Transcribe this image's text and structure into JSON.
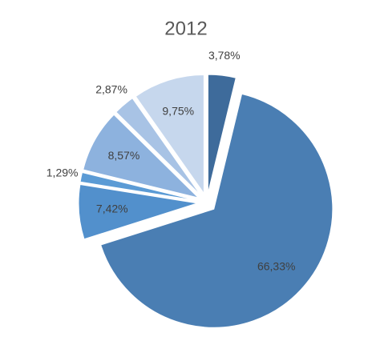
{
  "chart_data": {
    "type": "pie",
    "title": "2012",
    "values": [
      3.78,
      66.33,
      7.42,
      1.29,
      8.57,
      2.87,
      9.75
    ],
    "value_labels": [
      "3,78%",
      "66,33%",
      "7,42%",
      "1,29%",
      "8,57%",
      "2,87%",
      "9,75%"
    ],
    "colors": [
      "#3e6b9b",
      "#4a7eb3",
      "#5290cc",
      "#5b9bd5",
      "#8db2de",
      "#a8c3e5",
      "#c6d7ed"
    ],
    "exploded": true
  }
}
